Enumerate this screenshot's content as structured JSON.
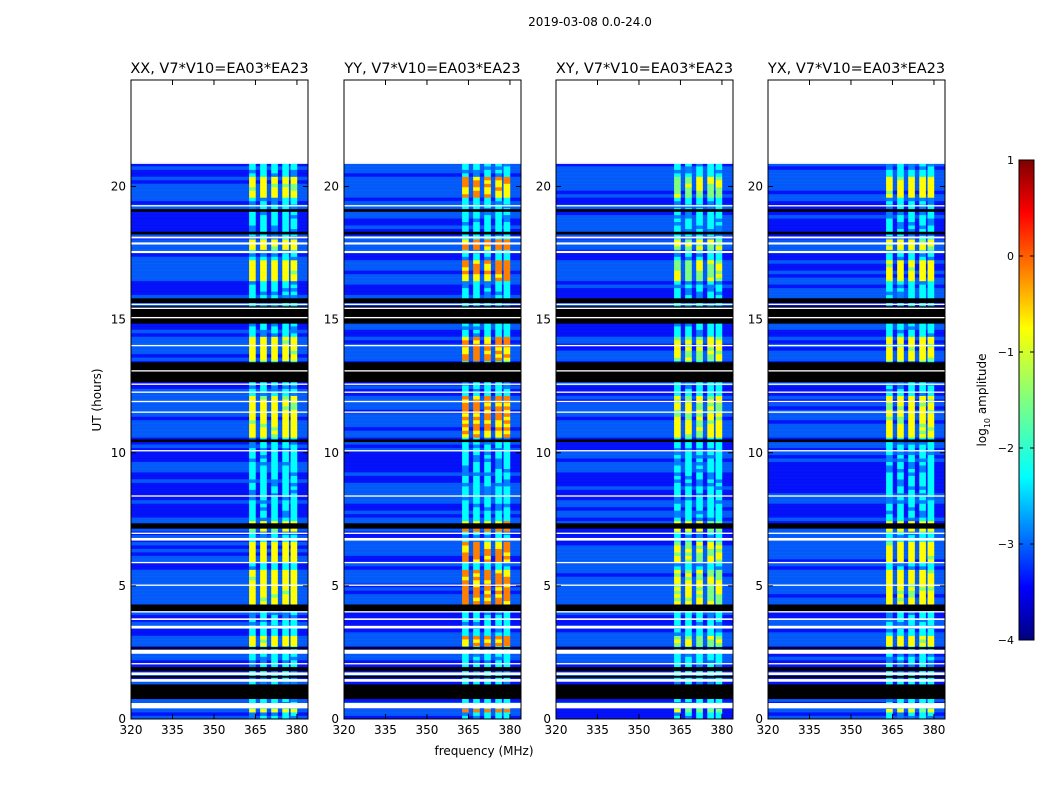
{
  "chart_data": {
    "type": "heatmap",
    "suptitle": "2019-03-08 0.0-24.0",
    "xlabel": "frequency (MHz)",
    "ylabel": "UT (hours)",
    "xlim": [
      320,
      384
    ],
    "ylim": [
      0,
      24
    ],
    "x_ticks": [
      320,
      335,
      350,
      365,
      380
    ],
    "y_ticks": [
      0,
      5,
      10,
      15,
      20
    ],
    "data_extent_hours": [
      0,
      20.9
    ],
    "rfi_band_mhz": [
      361,
      380
    ],
    "panels": [
      {
        "title": "XX, V7*V10=EA03*EA23",
        "rfi_strength": 0.55,
        "rfi_columns_mhz": [
          364,
          368,
          372,
          376,
          379
        ]
      },
      {
        "title": "YY, V7*V10=EA03*EA23",
        "rfi_strength": 0.65,
        "rfi_columns_mhz": [
          364,
          368,
          372,
          376,
          379
        ]
      },
      {
        "title": "XY, V7*V10=EA03*EA23",
        "rfi_strength": 0.5,
        "rfi_columns_mhz": [
          364,
          368,
          372,
          376,
          379
        ]
      },
      {
        "title": "YX, V7*V10=EA03*EA23",
        "rfi_strength": 0.55,
        "rfi_columns_mhz": [
          364,
          368,
          372,
          376,
          379
        ]
      }
    ],
    "blank_hour_ranges": [
      [
        0.4,
        0.6
      ],
      [
        1.4,
        1.5
      ],
      [
        1.65,
        1.75
      ],
      [
        2.05,
        2.1
      ],
      [
        2.45,
        2.6
      ],
      [
        3.4,
        3.5
      ],
      [
        3.72,
        3.78
      ],
      [
        4.0,
        4.05
      ],
      [
        5.0,
        5.05
      ],
      [
        5.85,
        5.9
      ],
      [
        6.7,
        6.8
      ],
      [
        6.95,
        7.0
      ],
      [
        8.35,
        8.4
      ],
      [
        10.05,
        10.1
      ],
      [
        11.5,
        11.55
      ],
      [
        11.9,
        11.95
      ],
      [
        12.25,
        12.3
      ],
      [
        12.55,
        12.6
      ],
      [
        13.05,
        13.1
      ],
      [
        14.0,
        14.05
      ],
      [
        15.05,
        15.1
      ],
      [
        15.4,
        15.45
      ],
      [
        15.55,
        15.6
      ],
      [
        17.5,
        17.58
      ],
      [
        17.82,
        17.9
      ],
      [
        18.05,
        18.12
      ],
      [
        19.25,
        19.3
      ],
      [
        20.85,
        20.9
      ]
    ],
    "flag_hour_ranges": [
      [
        0.75,
        1.3
      ],
      [
        1.55,
        1.62
      ],
      [
        1.8,
        1.95
      ],
      [
        2.62,
        2.7
      ],
      [
        4.05,
        4.3
      ],
      [
        7.15,
        7.35
      ],
      [
        10.4,
        10.5
      ],
      [
        12.65,
        13.4
      ],
      [
        14.85,
        15.5
      ],
      [
        15.62,
        15.8
      ],
      [
        18.2,
        18.3
      ],
      [
        19.05,
        19.15
      ]
    ],
    "bright_band_hour_ranges": [
      [
        0.2,
        0.4
      ],
      [
        2.7,
        3.2
      ],
      [
        4.3,
        5.6
      ],
      [
        5.9,
        6.7
      ],
      [
        7.0,
        7.4
      ],
      [
        10.6,
        12.2
      ],
      [
        13.5,
        14.4
      ],
      [
        16.5,
        17.2
      ],
      [
        17.6,
        18.0
      ],
      [
        19.6,
        20.4
      ]
    ],
    "colorbar": {
      "label": "log10 amplitude",
      "label_base": "log",
      "label_sub": "10",
      "label_rest": " amplitude",
      "range": [
        -4,
        1
      ],
      "ticks": [
        1,
        0,
        -1,
        -2,
        -3,
        -4
      ],
      "colormap": [
        "#00007f",
        "#0000ff",
        "#007fff",
        "#00ffff",
        "#7fff7f",
        "#ffff00",
        "#ff7f00",
        "#ff0000",
        "#7f0000"
      ]
    }
  }
}
